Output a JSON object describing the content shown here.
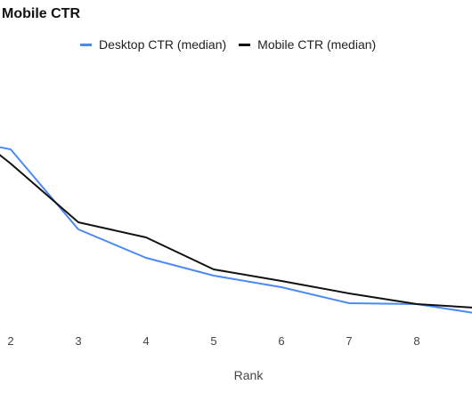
{
  "chart_data": {
    "type": "line",
    "title": "Mobile CTR",
    "xlabel": "Rank",
    "ylabel": "",
    "x": [
      1.8,
      2,
      3,
      4,
      5,
      6,
      7,
      8,
      8.85
    ],
    "x_ticks": [
      "2",
      "3",
      "4",
      "5",
      "6",
      "7",
      "8"
    ],
    "series": [
      {
        "name": "Desktop CTR (median)",
        "color": "#4a8af4",
        "values": [
          165,
          168,
          258,
          290,
          310,
          323,
          341,
          342,
          352
        ]
      },
      {
        "name": "Mobile CTR (median)",
        "color": "#111111",
        "values": [
          172,
          184,
          250,
          267,
          303,
          316,
          330,
          342,
          346
        ]
      }
    ],
    "y_inverted_note": "",
    "grid": false,
    "legend_position": "top"
  }
}
